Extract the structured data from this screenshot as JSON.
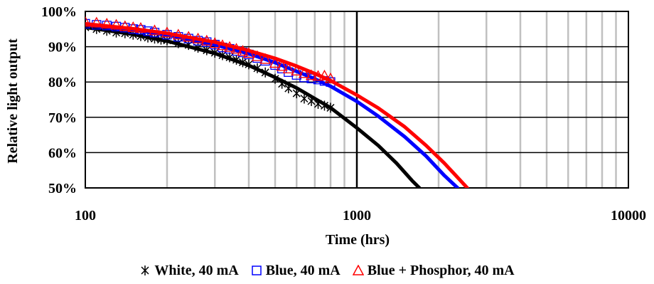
{
  "chart_data": {
    "type": "scatter",
    "x_scale": "log",
    "xlabel": "Time (hrs)",
    "ylabel": "Relative light output",
    "xlim": [
      100,
      10000
    ],
    "ylim": [
      50,
      100
    ],
    "x_tick_labels": [
      "100",
      "1000",
      "10000"
    ],
    "y_tick_labels": [
      "50%",
      "60%",
      "70%",
      "80%",
      "90%",
      "100%"
    ],
    "grid": true,
    "legend_position": "bottom",
    "series": [
      {
        "name": "White, 40 mA",
        "color": "#000000",
        "marker": "asterisk",
        "measured": {
          "x": [
            100,
            110,
            120,
            130,
            140,
            150,
            160,
            170,
            180,
            190,
            200,
            220,
            240,
            260,
            280,
            300,
            320,
            340,
            360,
            380,
            400,
            430,
            460,
            500,
            530,
            560,
            600,
            640,
            680,
            720,
            760,
            800
          ],
          "y": [
            95.5,
            95,
            94.5,
            94,
            93.8,
            93.4,
            93,
            92.6,
            92.3,
            92,
            91.8,
            91,
            90.5,
            89.7,
            89,
            88.3,
            87.6,
            87,
            86.3,
            85.6,
            85,
            83.9,
            82.7,
            80.9,
            79.5,
            78.2,
            76.8,
            75.3,
            74.6,
            73.8,
            73.3,
            72.7
          ]
        },
        "fit": {
          "x": [
            100,
            150,
            200,
            300,
            400,
            500,
            600,
            700,
            800,
            1000,
            1200,
            1400,
            1600,
            1700
          ],
          "y": [
            95.5,
            93.5,
            91.6,
            88.1,
            84.7,
            81.3,
            78.3,
            75.3,
            72.7,
            67,
            62,
            57,
            52,
            50
          ]
        }
      },
      {
        "name": "Blue, 40 mA",
        "color": "#0000ff",
        "marker": "square",
        "measured": {
          "x": [
            100,
            110,
            120,
            130,
            140,
            150,
            160,
            170,
            180,
            200,
            220,
            240,
            260,
            280,
            300,
            320,
            340,
            360,
            380,
            400,
            430,
            460,
            500,
            530,
            560,
            600,
            640,
            680,
            720,
            760,
            800
          ],
          "y": [
            96.5,
            96.2,
            96,
            95.7,
            95.4,
            95,
            94.8,
            94.4,
            94,
            93.4,
            92.8,
            92.3,
            91.7,
            91.3,
            90.6,
            89.8,
            89.4,
            88.8,
            88.4,
            87.8,
            86.8,
            86,
            84.8,
            83.8,
            82.8,
            82,
            81.3,
            81,
            80.7,
            80.3,
            80
          ]
        },
        "fit": {
          "x": [
            100,
            150,
            200,
            300,
            400,
            500,
            600,
            700,
            800,
            1000,
            1200,
            1500,
            1800,
            2100,
            2350
          ],
          "y": [
            96.2,
            94.7,
            93.3,
            90.5,
            88,
            85.5,
            83,
            80.9,
            78.8,
            74.5,
            70.3,
            64.5,
            59,
            53.5,
            50
          ]
        }
      },
      {
        "name": "Blue + Phosphor, 40 mA",
        "color": "#ff0000",
        "marker": "triangle",
        "measured": {
          "x": [
            100,
            110,
            120,
            130,
            140,
            150,
            160,
            180,
            200,
            220,
            240,
            260,
            280,
            300,
            320,
            340,
            360,
            380,
            400,
            430,
            460,
            500,
            530,
            560,
            600,
            640,
            680,
            720,
            760,
            800
          ],
          "y": [
            97,
            96.8,
            96.5,
            96.2,
            95.8,
            95.5,
            95.3,
            94.6,
            94,
            93.4,
            92.8,
            92.3,
            91.7,
            91,
            90.4,
            89.9,
            89.4,
            88.8,
            88.2,
            87.3,
            86.5,
            85.4,
            84.5,
            83.8,
            83.2,
            82.5,
            81.9,
            81.7,
            81.8,
            81
          ]
        },
        "fit": {
          "x": [
            100,
            150,
            200,
            300,
            400,
            500,
            600,
            700,
            800,
            1000,
            1200,
            1500,
            1800,
            2100,
            2400,
            2550
          ],
          "y": [
            96.5,
            95.1,
            93.8,
            91.3,
            88.9,
            86.7,
            84.5,
            82.4,
            80.4,
            76.3,
            72.6,
            67.3,
            62,
            57,
            52.2,
            50
          ]
        }
      }
    ]
  }
}
